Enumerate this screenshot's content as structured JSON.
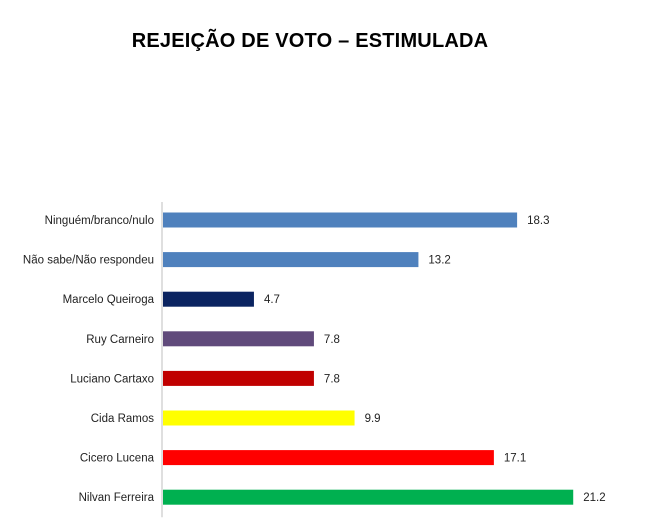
{
  "title": "REJEIÇÃO DE VOTO – ESTIMULADA",
  "chart_data": {
    "type": "bar",
    "orientation": "horizontal",
    "title": "REJEIÇÃO DE VOTO – ESTIMULADA",
    "xlabel": "",
    "ylabel": "",
    "xlim": [
      0,
      24
    ],
    "grid": false,
    "categories": [
      "Ninguém/branco/nulo",
      "Não sabe/Não respondeu",
      "Marcelo Queiroga",
      "Ruy Carneiro",
      "Luciano Cartaxo",
      "Cida Ramos",
      "Cicero Lucena",
      "Nilvan Ferreira"
    ],
    "values": [
      18.3,
      13.2,
      4.7,
      7.8,
      7.8,
      9.9,
      17.1,
      21.2
    ],
    "value_labels": [
      "18.3",
      "13.2",
      "4.7",
      "7.8",
      "7.8",
      "9.9",
      "17.1",
      "21.2"
    ],
    "colors": [
      "#4f81bd",
      "#4f81bd",
      "#0b2461",
      "#604a7b",
      "#c00000",
      "#ffff00",
      "#ff0000",
      "#00b050"
    ]
  }
}
